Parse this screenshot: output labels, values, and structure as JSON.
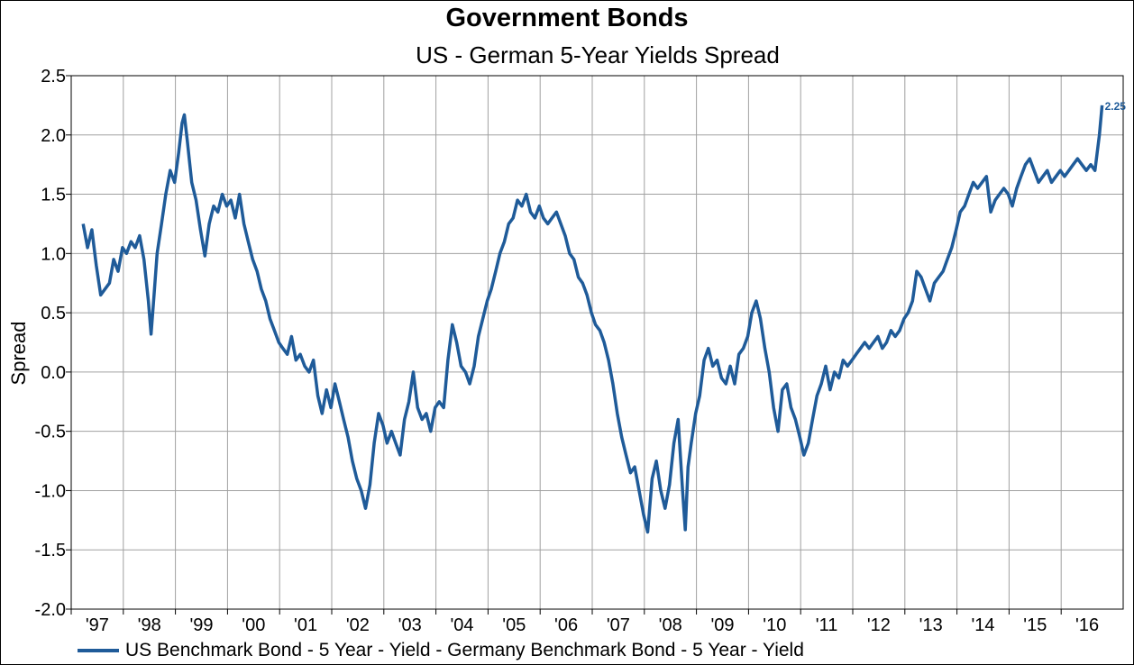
{
  "chart_data": {
    "type": "line",
    "title": "Government Bonds",
    "subtitle": "US - German 5-Year Yields Spread",
    "ylabel": "Spread",
    "xlabel": "",
    "ylim": [
      -2.0,
      2.5
    ],
    "yticks": [
      "2.5",
      "2.0",
      "1.5",
      "1.0",
      "0.5",
      "0.0",
      "-0.5",
      "-1.0",
      "-1.5",
      "-2.0"
    ],
    "xticks": [
      "'97",
      "'98",
      "'99",
      "'00",
      "'01",
      "'02",
      "'03",
      "'04",
      "'05",
      "'06",
      "'07",
      "'08",
      "'09",
      "'10",
      "'11",
      "'12",
      "'13",
      "'14",
      "'15",
      "'16"
    ],
    "grid": true,
    "legend_position": "bottom-left",
    "series": [
      {
        "name": "US Benchmark Bond - 5 Year - Yield - Germany Benchmark Bond - 5 Year - Yield",
        "color": "#1f5b99",
        "last_value_label": "2.25",
        "points": [
          [
            "1997-05-01",
            1.25
          ],
          [
            "1997-06-01",
            1.05
          ],
          [
            "1997-07-01",
            1.2
          ],
          [
            "1997-08-01",
            0.9
          ],
          [
            "1997-09-01",
            0.65
          ],
          [
            "1997-10-01",
            0.7
          ],
          [
            "1997-11-01",
            0.75
          ],
          [
            "1997-12-01",
            0.95
          ],
          [
            "1998-01-01",
            0.85
          ],
          [
            "1998-02-01",
            1.05
          ],
          [
            "1998-03-01",
            1.0
          ],
          [
            "1998-04-01",
            1.1
          ],
          [
            "1998-05-01",
            1.05
          ],
          [
            "1998-06-01",
            1.15
          ],
          [
            "1998-07-01",
            0.95
          ],
          [
            "1998-08-01",
            0.6
          ],
          [
            "1998-08-20",
            0.32
          ],
          [
            "1998-09-10",
            0.65
          ],
          [
            "1998-10-01",
            1.0
          ],
          [
            "1998-11-01",
            1.25
          ],
          [
            "1998-12-01",
            1.5
          ],
          [
            "1999-01-01",
            1.7
          ],
          [
            "1999-02-01",
            1.6
          ],
          [
            "1999-03-01",
            1.85
          ],
          [
            "1999-03-25",
            2.1
          ],
          [
            "1999-04-10",
            2.17
          ],
          [
            "1999-05-01",
            1.95
          ],
          [
            "1999-06-01",
            1.6
          ],
          [
            "1999-07-01",
            1.45
          ],
          [
            "1999-08-01",
            1.2
          ],
          [
            "1999-09-01",
            0.98
          ],
          [
            "1999-10-01",
            1.25
          ],
          [
            "1999-11-01",
            1.4
          ],
          [
            "1999-12-01",
            1.35
          ],
          [
            "2000-01-01",
            1.5
          ],
          [
            "2000-02-01",
            1.4
          ],
          [
            "2000-03-01",
            1.45
          ],
          [
            "2000-04-01",
            1.3
          ],
          [
            "2000-05-01",
            1.5
          ],
          [
            "2000-06-01",
            1.25
          ],
          [
            "2000-07-01",
            1.1
          ],
          [
            "2000-08-01",
            0.95
          ],
          [
            "2000-09-01",
            0.85
          ],
          [
            "2000-10-01",
            0.7
          ],
          [
            "2000-11-01",
            0.6
          ],
          [
            "2000-12-01",
            0.45
          ],
          [
            "2001-01-01",
            0.35
          ],
          [
            "2001-02-01",
            0.25
          ],
          [
            "2001-03-01",
            0.2
          ],
          [
            "2001-04-01",
            0.15
          ],
          [
            "2001-05-01",
            0.3
          ],
          [
            "2001-06-01",
            0.1
          ],
          [
            "2001-07-01",
            0.15
          ],
          [
            "2001-08-01",
            0.05
          ],
          [
            "2001-09-01",
            0.0
          ],
          [
            "2001-10-01",
            0.1
          ],
          [
            "2001-11-01",
            -0.2
          ],
          [
            "2001-12-01",
            -0.35
          ],
          [
            "2002-01-01",
            -0.15
          ],
          [
            "2002-02-01",
            -0.3
          ],
          [
            "2002-03-01",
            -0.1
          ],
          [
            "2002-04-01",
            -0.25
          ],
          [
            "2002-05-01",
            -0.4
          ],
          [
            "2002-06-01",
            -0.55
          ],
          [
            "2002-07-01",
            -0.75
          ],
          [
            "2002-08-01",
            -0.9
          ],
          [
            "2002-09-01",
            -1.0
          ],
          [
            "2002-10-01",
            -1.15
          ],
          [
            "2002-11-01",
            -0.95
          ],
          [
            "2002-12-01",
            -0.6
          ],
          [
            "2003-01-01",
            -0.35
          ],
          [
            "2003-02-01",
            -0.45
          ],
          [
            "2003-03-01",
            -0.6
          ],
          [
            "2003-04-01",
            -0.5
          ],
          [
            "2003-05-01",
            -0.6
          ],
          [
            "2003-06-01",
            -0.7
          ],
          [
            "2003-07-01",
            -0.4
          ],
          [
            "2003-08-01",
            -0.25
          ],
          [
            "2003-09-01",
            0.0
          ],
          [
            "2003-10-01",
            -0.3
          ],
          [
            "2003-11-01",
            -0.4
          ],
          [
            "2003-12-01",
            -0.35
          ],
          [
            "2004-01-01",
            -0.5
          ],
          [
            "2004-02-01",
            -0.3
          ],
          [
            "2004-03-01",
            -0.25
          ],
          [
            "2004-04-01",
            -0.3
          ],
          [
            "2004-05-01",
            0.1
          ],
          [
            "2004-06-01",
            0.4
          ],
          [
            "2004-07-01",
            0.25
          ],
          [
            "2004-08-01",
            0.05
          ],
          [
            "2004-09-01",
            0.0
          ],
          [
            "2004-10-01",
            -0.1
          ],
          [
            "2004-11-01",
            0.05
          ],
          [
            "2004-12-01",
            0.3
          ],
          [
            "2005-01-01",
            0.45
          ],
          [
            "2005-02-01",
            0.6
          ],
          [
            "2005-03-01",
            0.7
          ],
          [
            "2005-04-01",
            0.85
          ],
          [
            "2005-05-01",
            1.0
          ],
          [
            "2005-06-01",
            1.1
          ],
          [
            "2005-07-01",
            1.25
          ],
          [
            "2005-08-01",
            1.3
          ],
          [
            "2005-09-01",
            1.45
          ],
          [
            "2005-10-01",
            1.4
          ],
          [
            "2005-11-01",
            1.5
          ],
          [
            "2005-12-01",
            1.35
          ],
          [
            "2006-01-01",
            1.3
          ],
          [
            "2006-02-01",
            1.4
          ],
          [
            "2006-03-01",
            1.3
          ],
          [
            "2006-04-01",
            1.25
          ],
          [
            "2006-05-01",
            1.3
          ],
          [
            "2006-06-01",
            1.35
          ],
          [
            "2006-07-01",
            1.25
          ],
          [
            "2006-08-01",
            1.15
          ],
          [
            "2006-09-01",
            1.0
          ],
          [
            "2006-10-01",
            0.95
          ],
          [
            "2006-11-01",
            0.8
          ],
          [
            "2006-12-01",
            0.75
          ],
          [
            "2007-01-01",
            0.65
          ],
          [
            "2007-02-01",
            0.5
          ],
          [
            "2007-03-01",
            0.4
          ],
          [
            "2007-04-01",
            0.35
          ],
          [
            "2007-05-01",
            0.25
          ],
          [
            "2007-06-01",
            0.1
          ],
          [
            "2007-07-01",
            -0.1
          ],
          [
            "2007-08-01",
            -0.35
          ],
          [
            "2007-09-01",
            -0.55
          ],
          [
            "2007-10-01",
            -0.7
          ],
          [
            "2007-11-01",
            -0.85
          ],
          [
            "2007-12-01",
            -0.8
          ],
          [
            "2008-01-01",
            -1.0
          ],
          [
            "2008-02-01",
            -1.2
          ],
          [
            "2008-03-01",
            -1.35
          ],
          [
            "2008-04-01",
            -0.9
          ],
          [
            "2008-05-01",
            -0.75
          ],
          [
            "2008-06-01",
            -1.0
          ],
          [
            "2008-07-01",
            -1.15
          ],
          [
            "2008-08-01",
            -0.95
          ],
          [
            "2008-09-01",
            -0.6
          ],
          [
            "2008-10-01",
            -0.4
          ],
          [
            "2008-11-01",
            -1.0
          ],
          [
            "2008-11-20",
            -1.33
          ],
          [
            "2008-12-10",
            -0.8
          ],
          [
            "2009-01-01",
            -0.6
          ],
          [
            "2009-02-01",
            -0.35
          ],
          [
            "2009-03-01",
            -0.2
          ],
          [
            "2009-04-01",
            0.1
          ],
          [
            "2009-05-01",
            0.2
          ],
          [
            "2009-06-01",
            0.05
          ],
          [
            "2009-07-01",
            0.1
          ],
          [
            "2009-08-01",
            -0.05
          ],
          [
            "2009-09-01",
            -0.1
          ],
          [
            "2009-10-01",
            0.05
          ],
          [
            "2009-11-01",
            -0.1
          ],
          [
            "2009-12-01",
            0.15
          ],
          [
            "2010-01-01",
            0.2
          ],
          [
            "2010-02-01",
            0.3
          ],
          [
            "2010-03-01",
            0.5
          ],
          [
            "2010-04-01",
            0.6
          ],
          [
            "2010-05-01",
            0.45
          ],
          [
            "2010-06-01",
            0.2
          ],
          [
            "2010-07-01",
            0.0
          ],
          [
            "2010-08-01",
            -0.3
          ],
          [
            "2010-09-01",
            -0.5
          ],
          [
            "2010-10-01",
            -0.15
          ],
          [
            "2010-11-01",
            -0.1
          ],
          [
            "2010-12-01",
            -0.3
          ],
          [
            "2011-01-01",
            -0.4
          ],
          [
            "2011-02-01",
            -0.55
          ],
          [
            "2011-03-01",
            -0.7
          ],
          [
            "2011-04-01",
            -0.6
          ],
          [
            "2011-05-01",
            -0.4
          ],
          [
            "2011-06-01",
            -0.2
          ],
          [
            "2011-07-01",
            -0.1
          ],
          [
            "2011-08-01",
            0.05
          ],
          [
            "2011-09-01",
            -0.15
          ],
          [
            "2011-10-01",
            0.0
          ],
          [
            "2011-11-01",
            -0.05
          ],
          [
            "2011-12-01",
            0.1
          ],
          [
            "2012-01-01",
            0.05
          ],
          [
            "2012-02-01",
            0.1
          ],
          [
            "2012-03-01",
            0.15
          ],
          [
            "2012-04-01",
            0.2
          ],
          [
            "2012-05-01",
            0.25
          ],
          [
            "2012-06-01",
            0.2
          ],
          [
            "2012-07-01",
            0.25
          ],
          [
            "2012-08-01",
            0.3
          ],
          [
            "2012-09-01",
            0.2
          ],
          [
            "2012-10-01",
            0.25
          ],
          [
            "2012-11-01",
            0.35
          ],
          [
            "2012-12-01",
            0.3
          ],
          [
            "2013-01-01",
            0.35
          ],
          [
            "2013-02-01",
            0.45
          ],
          [
            "2013-03-01",
            0.5
          ],
          [
            "2013-04-01",
            0.6
          ],
          [
            "2013-05-01",
            0.85
          ],
          [
            "2013-06-01",
            0.8
          ],
          [
            "2013-07-01",
            0.7
          ],
          [
            "2013-08-01",
            0.6
          ],
          [
            "2013-09-01",
            0.75
          ],
          [
            "2013-10-01",
            0.8
          ],
          [
            "2013-11-01",
            0.85
          ],
          [
            "2013-12-01",
            0.95
          ],
          [
            "2014-01-01",
            1.05
          ],
          [
            "2014-02-01",
            1.2
          ],
          [
            "2014-03-01",
            1.35
          ],
          [
            "2014-04-01",
            1.4
          ],
          [
            "2014-05-01",
            1.5
          ],
          [
            "2014-06-01",
            1.6
          ],
          [
            "2014-07-01",
            1.55
          ],
          [
            "2014-08-01",
            1.6
          ],
          [
            "2014-09-01",
            1.65
          ],
          [
            "2014-10-01",
            1.35
          ],
          [
            "2014-11-01",
            1.45
          ],
          [
            "2014-12-01",
            1.5
          ],
          [
            "2015-01-01",
            1.55
          ],
          [
            "2015-02-01",
            1.5
          ],
          [
            "2015-03-01",
            1.4
          ],
          [
            "2015-04-01",
            1.55
          ],
          [
            "2015-05-01",
            1.65
          ],
          [
            "2015-06-01",
            1.75
          ],
          [
            "2015-07-01",
            1.8
          ],
          [
            "2015-08-01",
            1.7
          ],
          [
            "2015-09-01",
            1.6
          ],
          [
            "2015-10-01",
            1.65
          ],
          [
            "2015-11-01",
            1.7
          ],
          [
            "2015-12-01",
            1.6
          ],
          [
            "2016-01-01",
            1.65
          ],
          [
            "2016-02-01",
            1.7
          ],
          [
            "2016-03-01",
            1.65
          ],
          [
            "2016-04-01",
            1.7
          ],
          [
            "2016-05-01",
            1.75
          ],
          [
            "2016-06-01",
            1.8
          ],
          [
            "2016-07-01",
            1.75
          ],
          [
            "2016-08-01",
            1.7
          ],
          [
            "2016-09-01",
            1.75
          ],
          [
            "2016-10-01",
            1.7
          ],
          [
            "2016-11-01",
            2.0
          ],
          [
            "2016-11-20",
            2.25
          ]
        ]
      }
    ]
  }
}
